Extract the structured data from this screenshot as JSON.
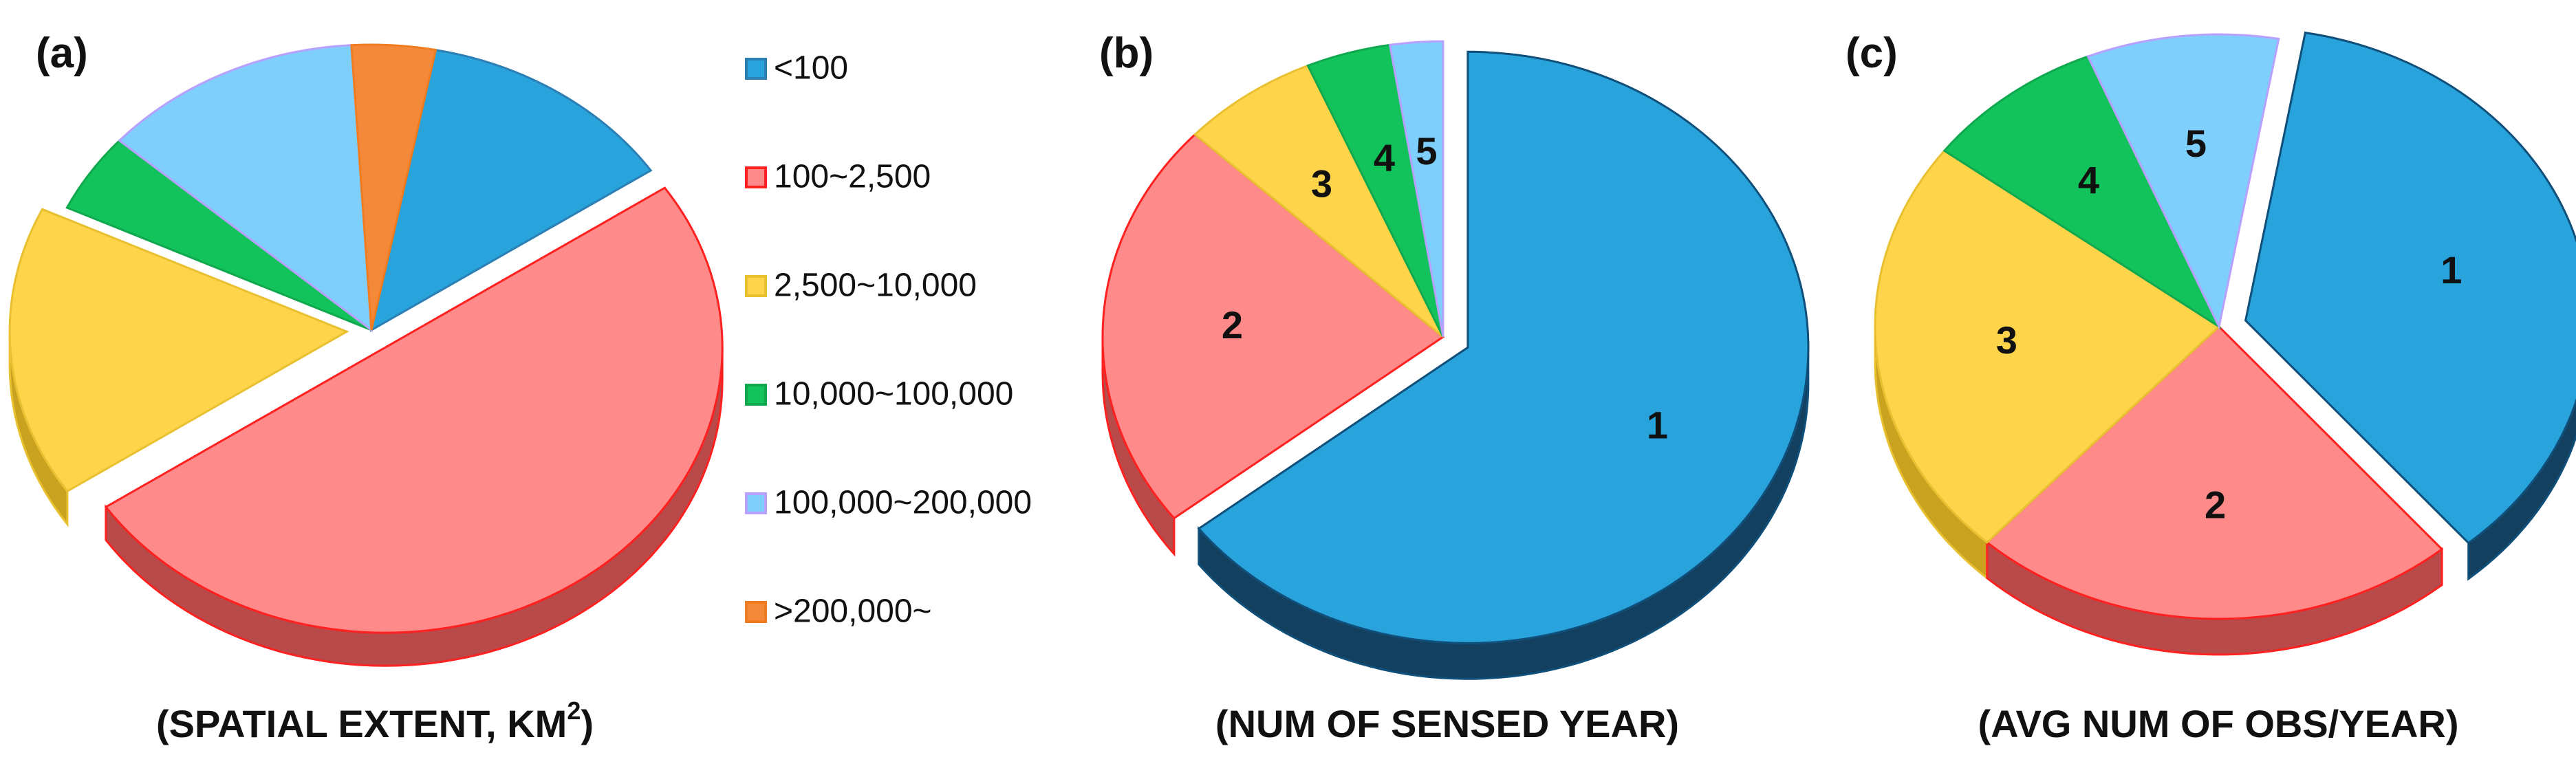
{
  "chart_data": [
    {
      "type": "pie",
      "panel_label": "(a)",
      "title": "(SPATIAL EXTENT, KM",
      "title_sup": "2",
      "title_end": ")",
      "legend": {
        "position": "right"
      },
      "slices": [
        {
          "name": "<100",
          "value": 12.5,
          "color": "#29A3DC",
          "side": "#1E7DAE",
          "stroke": "#2B7FB5",
          "show_label": false
        },
        {
          "name": "100~2,500",
          "value": 50.0,
          "color": "#FF8A8A",
          "side": "#B84A4A",
          "stroke": "#FF2020",
          "exploded": true,
          "show_label": false
        },
        {
          "name": "2,500~10,000",
          "value": 16.5,
          "color": "#FDD44A",
          "side": "#C9A21F",
          "stroke": "#E8C030",
          "exploded": true,
          "show_label": false
        },
        {
          "name": "10,000~100,000",
          "value": 4.5,
          "color": "#12C25A",
          "side": "#0B8A3E",
          "stroke": "#10A84E",
          "show_label": false
        },
        {
          "name": "100,000~200,000",
          "value": 12.5,
          "color": "#7ECFFB",
          "side": "#5AA6D2",
          "stroke": "#B8A0FF",
          "show_label": false
        },
        {
          "name": ">200,000~",
          "value": 4.0,
          "color": "#F5893A",
          "side": "#C0641F",
          "stroke": "#F07C20",
          "show_label": false
        }
      ]
    },
    {
      "type": "pie",
      "panel_label": "(b)",
      "title": "(NUM OF SENSED YEAR)",
      "slices": [
        {
          "name": "1",
          "value": 64.5,
          "color": "#29A3DC",
          "side": "#14405F",
          "stroke": "#0F4F7A",
          "exploded": true
        },
        {
          "name": "2",
          "value": 22.5,
          "color": "#FF8A8A",
          "side": "#B84A4A",
          "stroke": "#FF2020"
        },
        {
          "name": "3",
          "value": 6.5,
          "color": "#FDD44A",
          "side": "#C9A21F",
          "stroke": "#E8C030"
        },
        {
          "name": "4",
          "value": 4.0,
          "color": "#12C25A",
          "side": "#0B8A3E",
          "stroke": "#10A84E"
        },
        {
          "name": "5",
          "value": 2.5,
          "color": "#7ECFFB",
          "side": "#5AA6D2",
          "stroke": "#B8A0FF"
        }
      ]
    },
    {
      "type": "pie",
      "panel_label": "(c)",
      "title": "(AVG NUM OF OBS/YEAR)",
      "slices": [
        {
          "name": "1",
          "value": 36.0,
          "color": "#29A3DC",
          "side": "#14405F",
          "stroke": "#0F4F7A",
          "exploded": true
        },
        {
          "name": "2",
          "value": 23.0,
          "color": "#FF8A8A",
          "side": "#B84A4A",
          "stroke": "#FF2020"
        },
        {
          "name": "3",
          "value": 23.5,
          "color": "#FDD44A",
          "side": "#C9A21F",
          "stroke": "#E8C030"
        },
        {
          "name": "4",
          "value": 8.5,
          "color": "#12C25A",
          "side": "#0B8A3E",
          "stroke": "#10A84E"
        },
        {
          "name": "5",
          "value": 9.0,
          "color": "#7ECFFB",
          "side": "#5AA6D2",
          "stroke": "#B8A0FF"
        }
      ]
    }
  ]
}
